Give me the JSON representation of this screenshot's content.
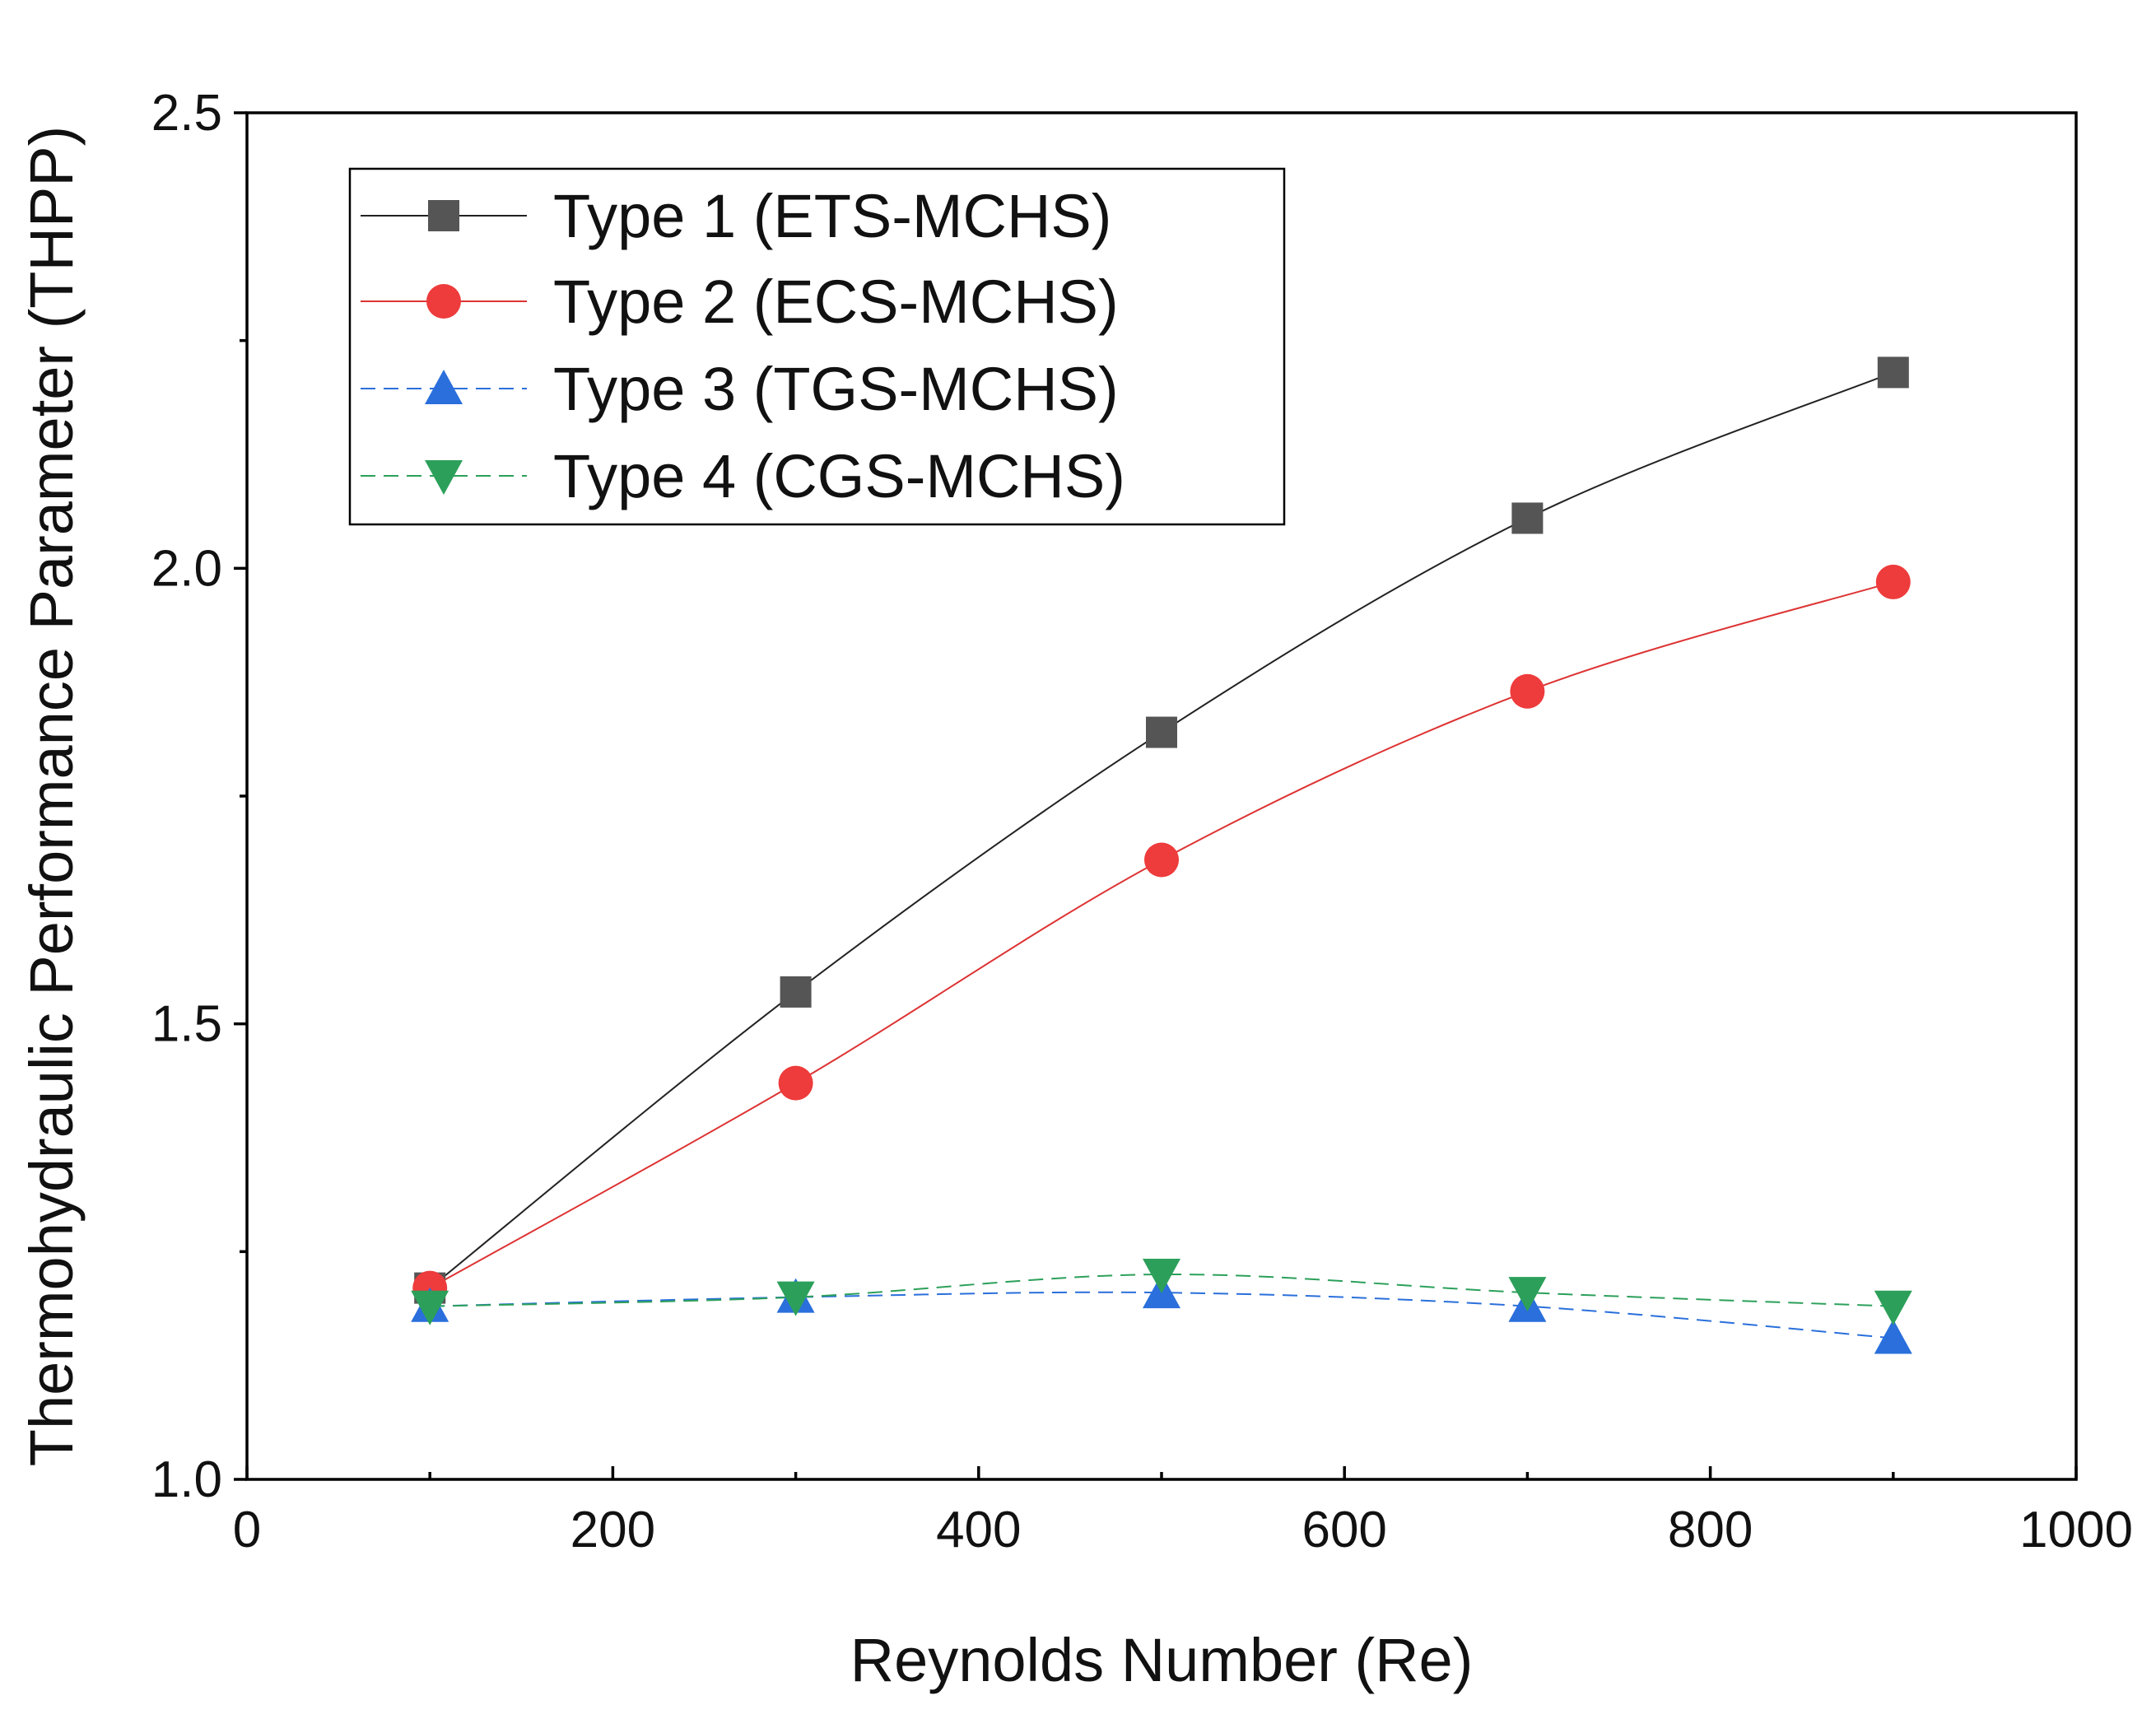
{
  "chart_data": {
    "type": "line",
    "title": "",
    "xlabel": "Reynolds Number (Re)",
    "ylabel": "Thermohydraulic Performance Parameter (THPP)",
    "xlim": [
      0,
      1000
    ],
    "ylim": [
      1.0,
      2.5
    ],
    "x_ticks": [
      0,
      200,
      400,
      600,
      800,
      1000
    ],
    "y_ticks": [
      1.0,
      1.5,
      2.0,
      2.5
    ],
    "x_tick_labels": [
      "0",
      "200",
      "400",
      "600",
      "800",
      "1000"
    ],
    "y_tick_labels": [
      "1.0",
      "1.5",
      "2.0",
      "2.5"
    ],
    "grid": false,
    "legend_position": "top-left",
    "x": [
      100,
      300,
      500,
      700,
      900
    ],
    "series": [
      {
        "name": "Type 1 (ETS-MCHS)",
        "values": [
          1.21,
          1.535,
          1.82,
          2.055,
          2.215
        ],
        "color": "#555555",
        "line_color": "#222222",
        "marker": "square",
        "dash": "solid"
      },
      {
        "name": "Type 2 (ECS-MCHS)",
        "values": [
          1.21,
          1.435,
          1.68,
          1.865,
          1.985
        ],
        "color": "#ee3b3b",
        "line_color": "#dd3333",
        "marker": "circle",
        "dash": "solid"
      },
      {
        "name": "Type 3 (TGS-MCHS)",
        "values": [
          1.19,
          1.2,
          1.205,
          1.19,
          1.155
        ],
        "color": "#2a6fdb",
        "line_color": "#2a6fdb",
        "marker": "triangle-up",
        "dash": "dashed"
      },
      {
        "name": "Type 4 (CGS-MCHS)",
        "values": [
          1.19,
          1.2,
          1.225,
          1.205,
          1.19
        ],
        "color": "#2ca05a",
        "line_color": "#2ca05a",
        "marker": "triangle-down",
        "dash": "dashed"
      }
    ]
  }
}
